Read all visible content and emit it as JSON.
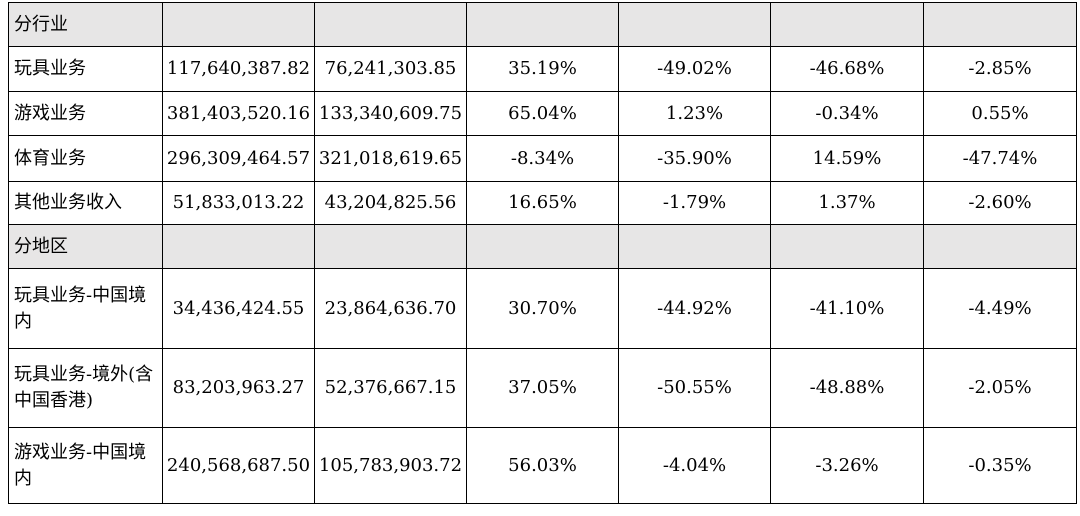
{
  "sections": {
    "industry": {
      "label": "分行业"
    },
    "region": {
      "label": "分地区"
    }
  },
  "rows": [
    {
      "name": "玩具业务",
      "c1": "117,640,387.82",
      "c2": "76,241,303.85",
      "c3": "35.19%",
      "c4": "-49.02%",
      "c5": "-46.68%",
      "c6": "-2.85%"
    },
    {
      "name": "游戏业务",
      "c1": "381,403,520.16",
      "c2": "133,340,609.75",
      "c3": "65.04%",
      "c4": "1.23%",
      "c5": "-0.34%",
      "c6": "0.55%"
    },
    {
      "name": "体育业务",
      "c1": "296,309,464.57",
      "c2": "321,018,619.65",
      "c3": "-8.34%",
      "c4": "-35.90%",
      "c5": "14.59%",
      "c6": "-47.74%"
    },
    {
      "name": "其他业务收入",
      "c1": "51,833,013.22",
      "c2": "43,204,825.56",
      "c3": "16.65%",
      "c4": "-1.79%",
      "c5": "1.37%",
      "c6": "-2.60%"
    },
    {
      "name": "玩具业务-中国境内",
      "c1": "34,436,424.55",
      "c2": "23,864,636.70",
      "c3": "30.70%",
      "c4": "-44.92%",
      "c5": "-41.10%",
      "c6": "-4.49%"
    },
    {
      "name": "玩具业务-境外(含中国香港)",
      "c1": "83,203,963.27",
      "c2": "52,376,667.15",
      "c3": "37.05%",
      "c4": "-50.55%",
      "c5": "-48.88%",
      "c6": "-2.05%"
    },
    {
      "name": "游戏业务-中国境内",
      "c1": "240,568,687.50",
      "c2": "105,783,903.72",
      "c3": "56.03%",
      "c4": "-4.04%",
      "c5": "-3.26%",
      "c6": "-0.35%"
    }
  ]
}
